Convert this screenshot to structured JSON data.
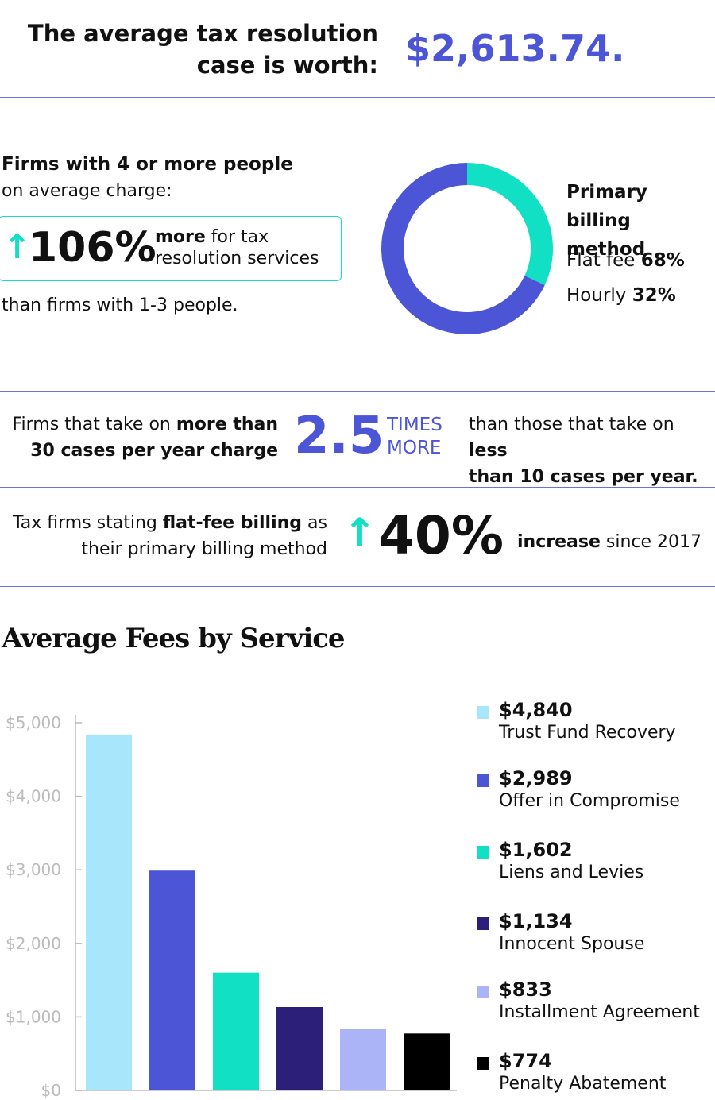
{
  "header": {
    "title": "The average tax resolution\ncase is worth:",
    "value": "$2,613.74."
  },
  "firm_size": {
    "lead_bold": "Firms with 4 or more people",
    "lead": "on average charge:",
    "percent": "106%",
    "more": "more",
    "rest": " for tax\nresolution services",
    "footer": "than firms with 1-3 people."
  },
  "case_volume": {
    "left": "Firms that take on ",
    "left_bold": "more than\n30 cases per year charge",
    "number": "2.5",
    "unit": "TIMES\nMORE",
    "right": "than those that take on ",
    "right_bold": "less\nthan 10 cases per year."
  },
  "flat_fee_trend": {
    "left": "Tax firms stating ",
    "left_bold": "flat-fee billing",
    "left_rest": " as\ntheir primary billing method",
    "number": "40%",
    "right_bold": "increase",
    "right": " since 2017"
  },
  "chart_data": [
    {
      "type": "pie",
      "title": "Primary\nbilling method",
      "categories": [
        "Flat fee",
        "Hourly"
      ],
      "values": [
        68,
        32
      ],
      "value_labels": [
        "68%",
        "32%"
      ],
      "colors": [
        "#4b55d6",
        "#12e0c4"
      ]
    },
    {
      "type": "bar",
      "title": "Average Fees by Service",
      "categories": [
        "Trust Fund Recovery",
        "Offer in Compromise",
        "Liens and Levies",
        "Innocent Spouse",
        "Installment Agreement",
        "Penalty Abatement"
      ],
      "values": [
        4840,
        2989,
        1602,
        1134,
        833,
        774
      ],
      "value_labels": [
        "$4,840",
        "$2,989",
        "$1,602",
        "$1,134",
        "$833",
        "$774"
      ],
      "colors": [
        "#a8e6fb",
        "#4b55d6",
        "#12e0c4",
        "#2c1f7a",
        "#aab4f7",
        "#000000"
      ],
      "ylim": [
        0,
        5000
      ],
      "yticks": [
        {
          "value": 0,
          "label": "$0"
        },
        {
          "value": 1000,
          "label": "$1,000"
        },
        {
          "value": 2000,
          "label": "$2,000"
        },
        {
          "value": 3000,
          "label": "$3,000"
        },
        {
          "value": 4000,
          "label": "$4,000"
        },
        {
          "value": 5000,
          "label": "$5,000"
        }
      ]
    }
  ]
}
